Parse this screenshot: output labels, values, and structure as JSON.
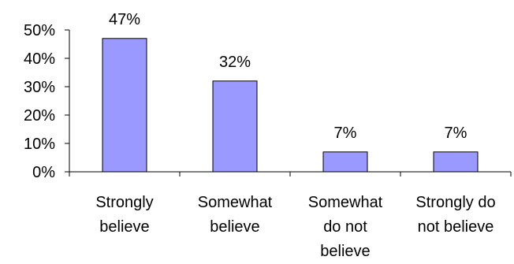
{
  "chart_data": {
    "type": "bar",
    "categories": [
      [
        "Strongly",
        "believe"
      ],
      [
        "Somewhat",
        "believe"
      ],
      [
        "Somewhat",
        "do not",
        "believe"
      ],
      [
        "Strongly do",
        "not believe"
      ]
    ],
    "values": [
      47,
      32,
      7,
      7
    ],
    "data_labels": [
      "47%",
      "32%",
      "7%",
      "7%"
    ],
    "ylim": [
      0,
      50
    ],
    "yticks": [
      0,
      10,
      20,
      30,
      40,
      50
    ],
    "ytick_labels": [
      "0%",
      "10%",
      "20%",
      "30%",
      "40%",
      "50%"
    ],
    "title": "",
    "xlabel": "",
    "ylabel": "",
    "grid": false,
    "legend": "none",
    "colors": {
      "bar_fill": "#9999ff",
      "bar_stroke": "#000000",
      "axis": "#000000",
      "text": "#000000"
    }
  }
}
